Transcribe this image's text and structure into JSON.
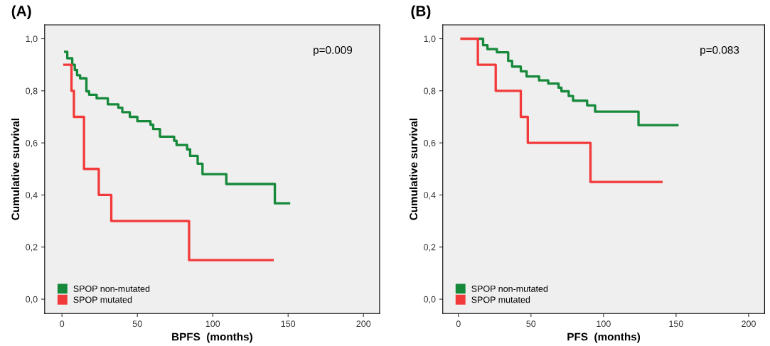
{
  "chart_data": [
    {
      "type": "step",
      "title": "(A)",
      "xlabel": "BPFS  (months)",
      "ylabel": "Cumulative survival",
      "annotations": [
        "p=0.009"
      ],
      "xlim": [
        -11.5,
        210.7
      ],
      "ylim": [
        -0.055,
        1.053
      ],
      "xticks": [
        0,
        50,
        100,
        150,
        200
      ],
      "yticks": [
        {
          "value": 0,
          "label": "0,0"
        },
        {
          "value": 0.2,
          "label": "0,2"
        },
        {
          "value": 0.4,
          "label": "0,4"
        },
        {
          "value": 0.6,
          "label": "0,6"
        },
        {
          "value": 0.8,
          "label": "0,8"
        },
        {
          "value": 1,
          "label": "1,0"
        }
      ],
      "grid": false,
      "legend": "bottom left",
      "marker": "none",
      "line_style": "solid",
      "series": [
        {
          "name": "SPOP non-mutated",
          "color": "#16893a",
          "x": [
            2.1,
            3.5,
            6.8,
            8.5,
            10,
            12,
            16.2,
            18,
            23,
            30.4,
            37.4,
            40,
            45,
            50,
            58.7,
            60.5,
            65,
            74.4,
            76,
            83,
            85,
            90,
            93.2,
            109,
            141.2,
            150.6
          ],
          "values": [
            0.95,
            0.925,
            0.9,
            0.88,
            0.86,
            0.848,
            0.798,
            0.785,
            0.771,
            0.748,
            0.735,
            0.718,
            0.7,
            0.683,
            0.67,
            0.653,
            0.624,
            0.608,
            0.592,
            0.575,
            0.55,
            0.52,
            0.48,
            0.442,
            0.368,
            0.368
          ]
        },
        {
          "name": "SPOP mutated",
          "color": "#f23a3a",
          "x": [
            1.6,
            6.3,
            7.9,
            14.6,
            24.4,
            32.7,
            84.3,
            139.7
          ],
          "values": [
            0.9,
            0.8,
            0.7,
            0.5,
            0.4,
            0.3,
            0.15,
            0.15
          ]
        }
      ]
    },
    {
      "type": "step",
      "title": "(B)",
      "xlabel": "PFS  (months)",
      "ylabel": "Cumulative survival",
      "annotations": [
        "p=0.083"
      ],
      "xlim": [
        -10.8,
        211
      ],
      "ylim": [
        -0.055,
        1.053
      ],
      "xticks": [
        0,
        50,
        100,
        150,
        200
      ],
      "yticks": [
        {
          "value": 0,
          "label": "0,0"
        },
        {
          "value": 0.2,
          "label": "0,2"
        },
        {
          "value": 0.4,
          "label": "0,4"
        },
        {
          "value": 0.6,
          "label": "0,6"
        },
        {
          "value": 0.8,
          "label": "0,8"
        },
        {
          "value": 1,
          "label": "1,0"
        }
      ],
      "grid": false,
      "legend": "bottom left",
      "marker": "none",
      "line_style": "solid",
      "series": [
        {
          "name": "SPOP non-mutated",
          "color": "#16893a",
          "x": [
            14.7,
            17,
            20,
            26.5,
            34.3,
            37,
            43,
            47,
            55.6,
            61.9,
            69,
            71,
            76,
            79,
            88.7,
            94.2,
            124.1,
            150.9
          ],
          "values": [
            1.0,
            0.975,
            0.96,
            0.948,
            0.915,
            0.893,
            0.875,
            0.855,
            0.84,
            0.828,
            0.812,
            0.798,
            0.78,
            0.762,
            0.744,
            0.72,
            0.668,
            0.668
          ]
        },
        {
          "name": "SPOP mutated",
          "color": "#f23a3a",
          "x": [
            2.1,
            13.4,
            25.7,
            43.0,
            47.8,
            91.0,
            139.9
          ],
          "values": [
            1.0,
            0.9,
            0.8,
            0.7,
            0.6,
            0.45,
            0.45
          ]
        }
      ]
    }
  ]
}
